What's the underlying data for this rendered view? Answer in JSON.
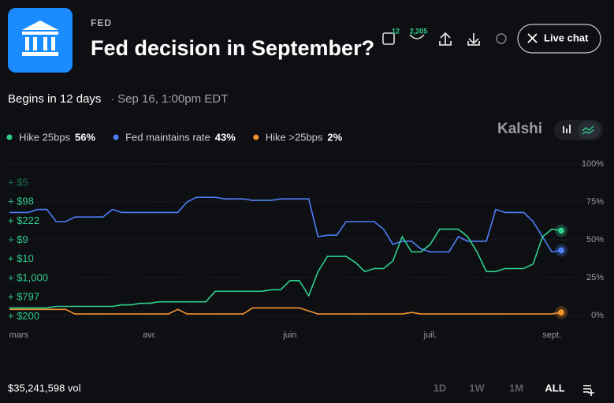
{
  "header": {
    "category": "FED",
    "title": "Fed decision in September?",
    "calendar_count": "12",
    "comment_count": "2,205",
    "live_chat": "Live chat"
  },
  "schedule": {
    "begins": "Begins in 12 days",
    "date": "· Sep 16, 1:00pm EDT"
  },
  "brand": "Kalshi",
  "trades": [
    "+ $5",
    "+ $98",
    "+ $222",
    "+ $9",
    "+ $10",
    "+ $1,000",
    "+ $797",
    "+ $200"
  ],
  "footer": {
    "volume": "$35,241,598 vol",
    "ranges": [
      "1D",
      "1W",
      "1M",
      "ALL"
    ]
  },
  "chart_data": {
    "type": "line",
    "categories": [
      null,
      "mars",
      null,
      null,
      null,
      null,
      null,
      null,
      null,
      null,
      null,
      null,
      null,
      null,
      null,
      "avr.",
      null,
      null,
      null,
      null,
      null,
      null,
      null,
      null,
      null,
      null,
      null,
      null,
      null,
      null,
      "juin",
      null,
      null,
      null,
      null,
      null,
      null,
      null,
      null,
      null,
      null,
      null,
      null,
      null,
      null,
      "juil.",
      null,
      null,
      null,
      null,
      null,
      null,
      null,
      null,
      null,
      null,
      null,
      null,
      "sept.",
      null
    ],
    "series": [
      {
        "name": "Hike 25bps",
        "latest": "56%",
        "color": "#2fcf8c",
        "values": [
          5,
          5,
          5,
          5,
          5,
          6,
          6,
          6,
          6,
          6,
          6,
          6,
          7,
          7,
          8,
          8,
          9,
          9,
          9,
          9,
          9,
          9,
          16,
          16,
          16,
          16,
          16,
          16,
          17,
          17,
          23,
          23,
          13,
          29,
          39,
          39,
          39,
          35,
          29,
          31,
          31,
          36,
          52,
          42,
          42,
          47,
          57,
          57,
          57,
          52,
          42,
          29,
          29,
          31,
          31,
          31,
          34,
          52,
          57,
          56
        ]
      },
      {
        "name": "Fed maintains rate",
        "latest": "43%",
        "color": "#4d7ef7",
        "values": [
          68,
          68,
          68,
          70,
          70,
          62,
          62,
          65,
          65,
          65,
          65,
          70,
          68,
          68,
          68,
          68,
          68,
          68,
          68,
          75,
          78,
          78,
          78,
          77,
          77,
          77,
          76,
          76,
          76,
          77,
          77,
          77,
          77,
          52,
          53,
          53,
          62,
          62,
          62,
          62,
          57,
          47,
          49,
          49,
          44,
          42,
          42,
          42,
          52,
          49,
          49,
          49,
          70,
          68,
          68,
          68,
          62,
          52,
          42,
          43
        ]
      },
      {
        "name": "Hike >25bps",
        "latest": "2%",
        "color": "#f5932c",
        "values": [
          4,
          4,
          4,
          4,
          4,
          4,
          4,
          1,
          1,
          1,
          1,
          1,
          1,
          1,
          1,
          1,
          1,
          1,
          4,
          1,
          1,
          1,
          1,
          1,
          1,
          1,
          5,
          5,
          5,
          5,
          5,
          5,
          3,
          1,
          1,
          1,
          1,
          1,
          1,
          1,
          1,
          1,
          1,
          2,
          1,
          1,
          1,
          1,
          1,
          1,
          1,
          1,
          1,
          1,
          1,
          1,
          1,
          1,
          1,
          2
        ]
      }
    ],
    "ylim": [
      0,
      100
    ],
    "yticks": [
      {
        "value": 0,
        "label": "0%"
      },
      {
        "value": 25,
        "label": "25%"
      },
      {
        "value": 50,
        "label": "50%"
      },
      {
        "value": 75,
        "label": "75%"
      },
      {
        "value": 100,
        "label": "100%"
      }
    ],
    "grid": true
  }
}
